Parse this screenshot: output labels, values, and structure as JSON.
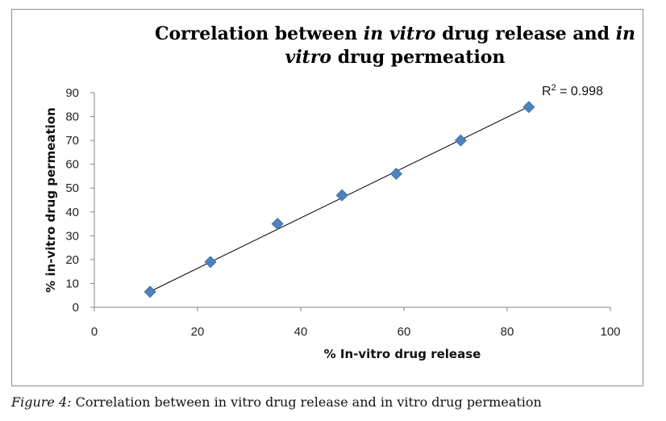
{
  "chart_data": {
    "type": "scatter",
    "title_parts": [
      {
        "text": "Correlation between ",
        "italic": false
      },
      {
        "text": "in vitro",
        "italic": true
      },
      {
        "text": " drug release and ",
        "italic": false
      },
      {
        "text": "in vitro",
        "italic": true
      },
      {
        "text": " drug permeation",
        "italic": false
      }
    ],
    "xlabel": "% In-vitro drug release",
    "ylabel": "% in-vitro drug permeation",
    "xlim": [
      0,
      100
    ],
    "ylim": [
      0,
      90
    ],
    "xticks": [
      0,
      20,
      40,
      60,
      80,
      100
    ],
    "yticks": [
      0,
      10,
      20,
      30,
      40,
      50,
      60,
      70,
      80,
      90
    ],
    "series": [
      {
        "x": [
          10.8,
          22.5,
          35.5,
          48.0,
          58.5,
          71.0,
          84.2
        ],
        "y": [
          6.5,
          19.0,
          35.0,
          47.0,
          56.0,
          70.0,
          84.0
        ]
      }
    ],
    "trendline": {
      "x": [
        10.8,
        84.2
      ],
      "y": [
        6.6,
        84.2
      ]
    },
    "r2_prefix": "R",
    "r2_sup": "2",
    "r2_value": " = 0.998",
    "marker_color": "#4f81bd",
    "grid": false
  },
  "caption": {
    "label": "Figure 4:",
    "text": " Correlation between in vitro drug release and in vitro drug permeation"
  }
}
